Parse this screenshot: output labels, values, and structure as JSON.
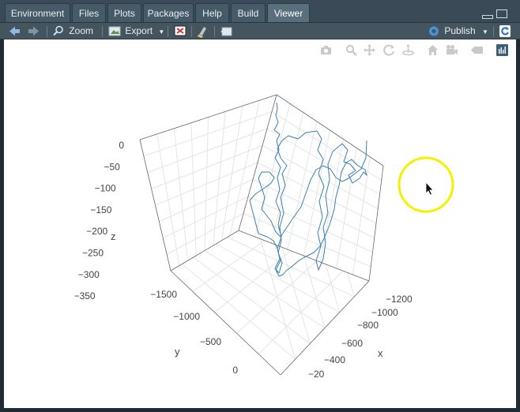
{
  "tabs": [
    {
      "label": "Environment",
      "active": false
    },
    {
      "label": "Files",
      "active": false
    },
    {
      "label": "Plots",
      "active": false
    },
    {
      "label": "Packages",
      "active": false
    },
    {
      "label": "Help",
      "active": false
    },
    {
      "label": "Build",
      "active": false
    },
    {
      "label": "Viewer",
      "active": true
    }
  ],
  "toolbar": {
    "zoom_label": "Zoom",
    "export_label": "Export",
    "publish_label": "Publish"
  },
  "plot_icons": [
    "camera-icon",
    "zoom-icon",
    "pan-icon",
    "orbit-rotation-icon",
    "turntable-rotation-icon",
    "reset-camera-icon",
    "save-camera-icon",
    "hover-icon",
    "plotly-logo-icon"
  ],
  "chart_data": {
    "type": "scatter3d-line",
    "xlabel": "x",
    "ylabel": "y",
    "zlabel": "z",
    "x_ticks": [
      "−1200",
      "−1000",
      "−800",
      "−600",
      "−400",
      "−20"
    ],
    "y_ticks": [
      "−1500",
      "−1000",
      "−500",
      "0"
    ],
    "z_ticks": [
      "0",
      "−50",
      "−100",
      "−150",
      "−200",
      "−250",
      "−300",
      "−350"
    ],
    "series_color": "#3a7fb0"
  },
  "colors": {
    "accent_tab": "#5a6f7c",
    "toolbar_bg": "#44555f",
    "publish_icon": "#4a90d9",
    "cursor_highlight": "#f5f000"
  }
}
